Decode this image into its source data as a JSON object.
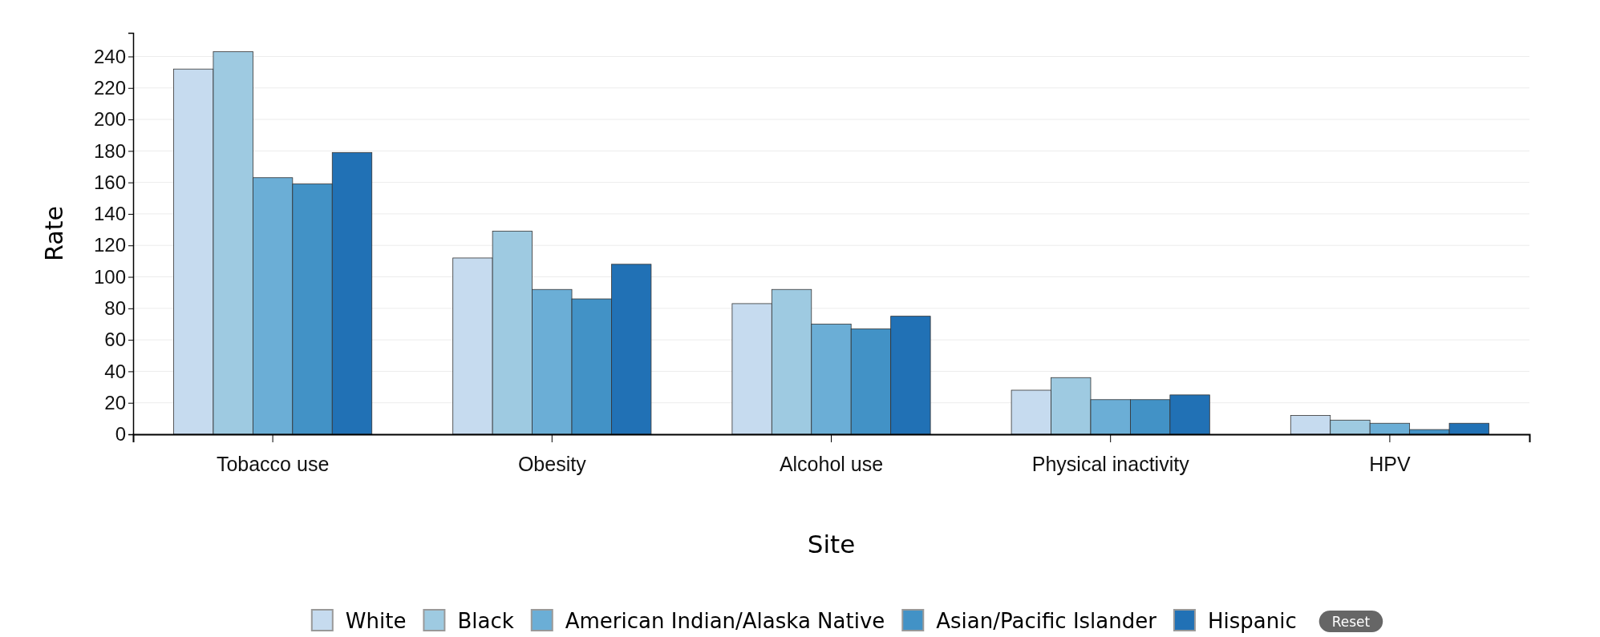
{
  "chart_data": {
    "type": "bar",
    "xlabel": "Site",
    "ylabel": "Rate",
    "categories": [
      "Tobacco use",
      "Obesity",
      "Alcohol use",
      "Physical inactivity",
      "HPV"
    ],
    "series": [
      {
        "name": "White",
        "color": "#c6dbef",
        "values": [
          232,
          112,
          83,
          28,
          12
        ]
      },
      {
        "name": "Black",
        "color": "#9ecae1",
        "values": [
          243,
          129,
          92,
          36,
          9
        ]
      },
      {
        "name": "American Indian/Alaska Native",
        "color": "#6baed6",
        "values": [
          163,
          92,
          70,
          22,
          7
        ]
      },
      {
        "name": "Asian/Pacific Islander",
        "color": "#4292c6",
        "values": [
          159,
          86,
          67,
          22,
          3
        ]
      },
      {
        "name": "Hispanic",
        "color": "#2171b5",
        "values": [
          179,
          108,
          75,
          25,
          7
        ]
      }
    ],
    "ylim": [
      0,
      255
    ],
    "yticks": [
      0,
      20,
      40,
      60,
      80,
      100,
      120,
      140,
      160,
      180,
      200,
      220,
      240
    ],
    "grid": "y",
    "legend": "bottom",
    "annotations": [
      "Reset"
    ]
  }
}
